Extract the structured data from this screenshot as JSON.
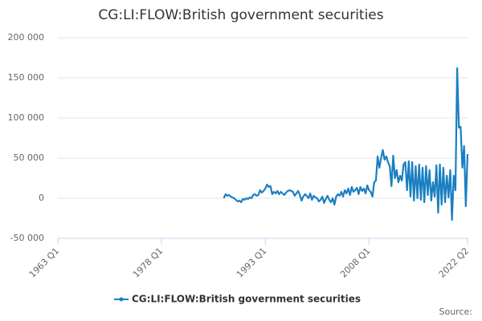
{
  "chart_data": {
    "type": "line",
    "title": "CG:LI:FLOW:British government securities",
    "source": "Source:",
    "xlim": [
      1963,
      2022.25
    ],
    "xticks": [
      {
        "value": 1963,
        "label": "1963 Q1"
      },
      {
        "value": 1978,
        "label": "1978 Q1"
      },
      {
        "value": 1993,
        "label": "1993 Q1"
      },
      {
        "value": 2008,
        "label": "2008 Q1"
      },
      {
        "value": 2022.25,
        "label": "2022 Q2"
      }
    ],
    "ylim": [
      -50000,
      200000
    ],
    "yticks": [
      {
        "value": -50000,
        "label": "-50 000"
      },
      0,
      {
        "value": 50000,
        "label": "50 000"
      },
      {
        "value": 100000,
        "label": "100 000"
      },
      {
        "value": 150000,
        "label": "150 000"
      },
      {
        "value": 200000,
        "label": "200 000"
      }
    ],
    "grid": true,
    "legend": "bottom",
    "x": [
      1987,
      1987.25,
      1987.5,
      1987.75,
      1988,
      1988.25,
      1988.5,
      1988.75,
      1989,
      1989.25,
      1989.5,
      1989.75,
      1990,
      1990.25,
      1990.5,
      1990.75,
      1991,
      1991.25,
      1991.5,
      1991.75,
      1992,
      1992.25,
      1992.5,
      1992.75,
      1993,
      1993.25,
      1993.5,
      1993.75,
      1994,
      1994.25,
      1994.5,
      1994.75,
      1995,
      1995.25,
      1995.5,
      1995.75,
      1996,
      1996.25,
      1996.5,
      1996.75,
      1997,
      1997.25,
      1997.5,
      1997.75,
      1998,
      1998.25,
      1998.5,
      1998.75,
      1999,
      1999.25,
      1999.5,
      1999.75,
      2000,
      2000.25,
      2000.5,
      2000.75,
      2001,
      2001.25,
      2001.5,
      2001.75,
      2002,
      2002.25,
      2002.5,
      2002.75,
      2003,
      2003.25,
      2003.5,
      2003.75,
      2004,
      2004.25,
      2004.5,
      2004.75,
      2005,
      2005.25,
      2005.5,
      2005.75,
      2006,
      2006.25,
      2006.5,
      2006.75,
      2007,
      2007.25,
      2007.5,
      2007.75,
      2008,
      2008.25,
      2008.5,
      2008.75,
      2009,
      2009.25,
      2009.5,
      2009.75,
      2010,
      2010.25,
      2010.5,
      2010.75,
      2011,
      2011.25,
      2011.5,
      2011.75,
      2012,
      2012.25,
      2012.5,
      2012.75,
      2013,
      2013.25,
      2013.5,
      2013.75,
      2014,
      2014.25,
      2014.5,
      2014.75,
      2015,
      2015.25,
      2015.5,
      2015.75,
      2016,
      2016.25,
      2016.5,
      2016.75,
      2017,
      2017.25,
      2017.5,
      2017.75,
      2018,
      2018.25,
      2018.5,
      2018.75,
      2019,
      2019.25,
      2019.5,
      2019.75,
      2020,
      2020.25,
      2020.5,
      2020.75,
      2021,
      2021.25,
      2021.5,
      2021.75,
      2022,
      2022.25
    ],
    "series": [
      {
        "name": "CG:LI:FLOW:British government securities",
        "color": "#1a7fc1",
        "values": [
          0,
          5000,
          3000,
          4000,
          2000,
          1000,
          0,
          -2000,
          -4000,
          -3000,
          -5000,
          -1000,
          -2000,
          0,
          -1000,
          1000,
          0,
          4000,
          5000,
          3000,
          4000,
          10000,
          7000,
          9000,
          12000,
          17000,
          14000,
          15000,
          5000,
          8000,
          6000,
          9000,
          5000,
          8000,
          6000,
          4000,
          7000,
          9000,
          10000,
          9000,
          8000,
          3000,
          6000,
          9000,
          4000,
          -3000,
          2000,
          5000,
          3000,
          0,
          6000,
          -2000,
          3000,
          1000,
          0,
          -4000,
          -2000,
          2000,
          -6000,
          -1000,
          3000,
          -2000,
          -5000,
          0,
          -8000,
          2000,
          5000,
          3000,
          8000,
          2000,
          10000,
          6000,
          12000,
          4000,
          14000,
          8000,
          10000,
          13000,
          5000,
          14000,
          9000,
          12000,
          6000,
          16000,
          10000,
          8000,
          2000,
          20000,
          22000,
          52000,
          38000,
          50000,
          60000,
          48000,
          52000,
          45000,
          40000,
          15000,
          53000,
          25000,
          35000,
          20000,
          28000,
          22000,
          42000,
          45000,
          10000,
          46000,
          2000,
          45000,
          -3000,
          40000,
          0,
          42000,
          -2000,
          38000,
          -5000,
          40000,
          4000,
          35000,
          -3000,
          20000,
          2000,
          41000,
          -18000,
          42000,
          -8000,
          38000,
          -5000,
          28000,
          1000,
          35000,
          -27000,
          28000,
          10000,
          162000,
          88000,
          89000,
          38000,
          65000,
          -10000,
          55000
        ]
      }
    ]
  }
}
